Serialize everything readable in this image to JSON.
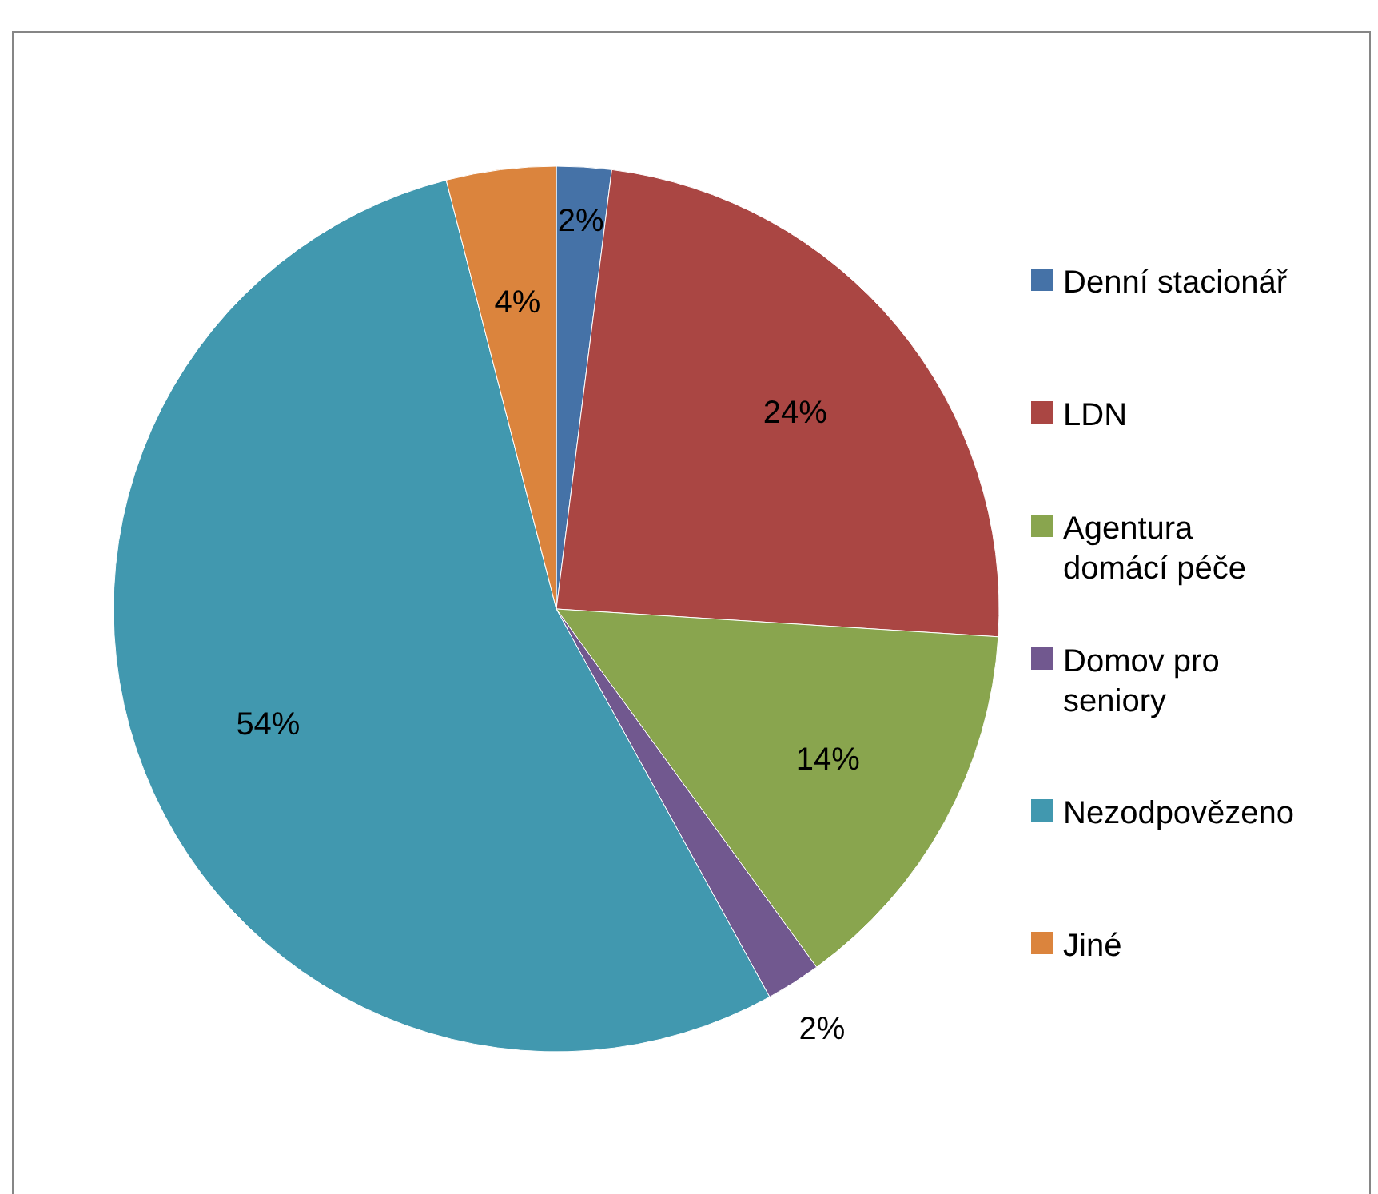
{
  "chart_data": {
    "type": "pie",
    "categories": [
      "Denní stacionář",
      "LDN",
      "Agentura domácí péče",
      "Domov pro seniory",
      "Nezodpovězeno",
      "Jiné"
    ],
    "values": [
      2,
      24,
      14,
      2,
      54,
      4
    ],
    "colors": [
      "#4572a7",
      "#aa4643",
      "#89a54e",
      "#71588f",
      "#4198af",
      "#db843d"
    ],
    "value_labels": [
      "2%",
      "24%",
      "14%",
      "2%",
      "54%",
      "4%"
    ],
    "legend": "right"
  }
}
